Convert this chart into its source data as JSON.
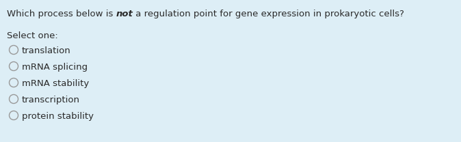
{
  "background_color": "#ddeef6",
  "question_prefix": "Which process below is ",
  "question_bold_italic": "not",
  "question_suffix": " a regulation point for gene expression in prokaryotic cells?",
  "select_label": "Select one:",
  "options": [
    "translation",
    "mRNA splicing",
    "mRNA stability",
    "transcription",
    "protein stability"
  ],
  "text_color": "#2a2a2a",
  "circle_edge_color": "#999999",
  "circle_face_color": "#ddeef6",
  "question_fontsize": 9.5,
  "label_fontsize": 9.5,
  "option_fontsize": 9.5,
  "fig_width": 6.74,
  "fig_height": 2.08,
  "dpi": 100
}
